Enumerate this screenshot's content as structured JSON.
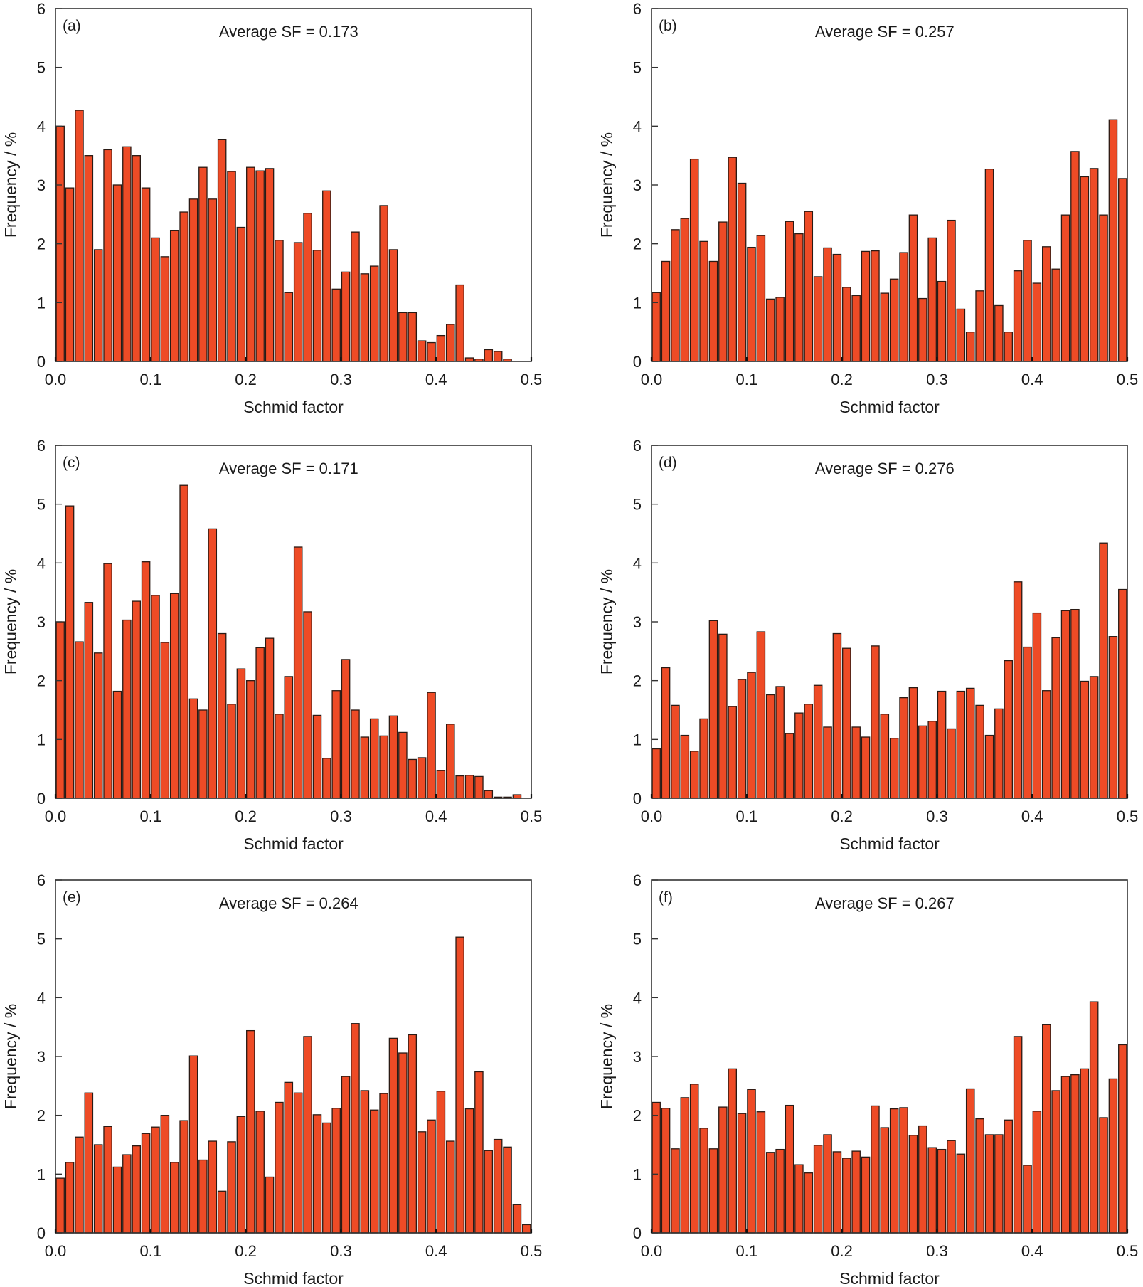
{
  "figure": {
    "bar_color": "#EE4B26",
    "bar_edge_color": "#2a1a14",
    "frame_color": "#333333"
  },
  "chart_data": [
    {
      "type": "bar",
      "panel": "(a)",
      "annotation": "Average SF = 0.173",
      "xlabel": "Schmid factor",
      "ylabel": "Frequency / %",
      "xlim": [
        0.0,
        0.5
      ],
      "ylim": [
        0,
        6
      ],
      "xticks": [
        "0.0",
        "0.1",
        "0.2",
        "0.3",
        "0.4",
        "0.5"
      ],
      "yticks": [
        "0",
        "1",
        "2",
        "3",
        "4",
        "5",
        "6"
      ],
      "bin_width": 0.01,
      "grid": false,
      "values": [
        4.0,
        2.95,
        4.27,
        3.5,
        1.9,
        3.6,
        3.0,
        3.65,
        3.5,
        2.95,
        2.1,
        1.78,
        2.23,
        2.54,
        2.76,
        3.3,
        2.76,
        3.77,
        3.23,
        2.28,
        3.3,
        3.24,
        3.28,
        2.06,
        1.17,
        2.02,
        2.52,
        1.89,
        2.9,
        1.23,
        1.52,
        2.2,
        1.49,
        1.62,
        2.65,
        1.9,
        0.83,
        0.83,
        0.35,
        0.32,
        0.44,
        0.63,
        1.3,
        0.06,
        0.04,
        0.2,
        0.17,
        0.04,
        0.0,
        0.0
      ]
    },
    {
      "type": "bar",
      "panel": "(b)",
      "annotation": "Average SF = 0.257",
      "xlabel": "Schmid factor",
      "ylabel": "Frequency / %",
      "xlim": [
        0.0,
        0.5
      ],
      "ylim": [
        0,
        6
      ],
      "xticks": [
        "0.0",
        "0.1",
        "0.2",
        "0.3",
        "0.4",
        "0.5"
      ],
      "yticks": [
        "0",
        "1",
        "2",
        "3",
        "4",
        "5",
        "6"
      ],
      "bin_width": 0.01,
      "grid": false,
      "values": [
        1.17,
        1.7,
        2.24,
        2.43,
        3.44,
        2.04,
        1.7,
        2.37,
        3.47,
        3.03,
        1.94,
        2.14,
        1.06,
        1.09,
        2.38,
        2.17,
        2.55,
        1.44,
        1.93,
        1.82,
        1.26,
        1.12,
        1.87,
        1.88,
        1.16,
        1.4,
        1.85,
        2.49,
        1.07,
        2.1,
        1.36,
        2.4,
        0.89,
        0.5,
        1.2,
        3.27,
        0.95,
        0.5,
        1.54,
        2.06,
        1.33,
        1.95,
        1.57,
        2.49,
        3.57,
        3.14,
        3.28,
        2.49,
        4.11,
        3.11
      ]
    },
    {
      "type": "bar",
      "panel": "(c)",
      "annotation": "Average SF = 0.171",
      "xlabel": "Schmid factor",
      "ylabel": "Frequency / %",
      "xlim": [
        0.0,
        0.5
      ],
      "ylim": [
        0,
        6
      ],
      "xticks": [
        "0.0",
        "0.1",
        "0.2",
        "0.3",
        "0.4",
        "0.5"
      ],
      "yticks": [
        "0",
        "1",
        "2",
        "3",
        "4",
        "5",
        "6"
      ],
      "bin_width": 0.01,
      "grid": false,
      "values": [
        3.0,
        4.97,
        2.66,
        3.33,
        2.47,
        3.99,
        1.82,
        3.03,
        3.35,
        4.02,
        3.45,
        2.65,
        3.48,
        5.32,
        1.69,
        1.5,
        4.58,
        2.8,
        1.6,
        2.2,
        2.0,
        2.56,
        2.72,
        1.43,
        2.07,
        4.27,
        3.17,
        1.41,
        0.68,
        1.83,
        2.36,
        1.5,
        1.04,
        1.35,
        1.06,
        1.4,
        1.12,
        0.66,
        0.69,
        1.8,
        0.47,
        1.26,
        0.38,
        0.39,
        0.37,
        0.13,
        0.02,
        0.02,
        0.06,
        0.0
      ]
    },
    {
      "type": "bar",
      "panel": "(d)",
      "annotation": "Average SF = 0.276",
      "xlabel": "Schmid factor",
      "ylabel": "Frequency / %",
      "xlim": [
        0.0,
        0.5
      ],
      "ylim": [
        0,
        6
      ],
      "xticks": [
        "0.0",
        "0.1",
        "0.2",
        "0.3",
        "0.4",
        "0.5"
      ],
      "yticks": [
        "0",
        "1",
        "2",
        "3",
        "4",
        "5",
        "6"
      ],
      "bin_width": 0.01,
      "grid": false,
      "values": [
        0.84,
        2.22,
        1.58,
        1.07,
        0.8,
        1.35,
        3.02,
        2.79,
        1.56,
        2.02,
        2.14,
        2.83,
        1.76,
        1.9,
        1.1,
        1.45,
        1.6,
        1.92,
        1.21,
        2.8,
        2.55,
        1.21,
        1.04,
        2.59,
        1.43,
        1.02,
        1.71,
        1.88,
        1.23,
        1.31,
        1.82,
        1.18,
        1.82,
        1.87,
        1.58,
        1.07,
        1.52,
        2.34,
        3.68,
        2.57,
        3.15,
        1.83,
        2.73,
        3.19,
        3.21,
        1.99,
        2.07,
        4.34,
        2.75,
        3.55
      ]
    },
    {
      "type": "bar",
      "panel": "(e)",
      "annotation": "Average SF = 0.264",
      "xlabel": "Schmid factor",
      "ylabel": "Frequency / %",
      "xlim": [
        0.0,
        0.5
      ],
      "ylim": [
        0,
        6
      ],
      "xticks": [
        "0.0",
        "0.1",
        "0.2",
        "0.3",
        "0.4",
        "0.5"
      ],
      "yticks": [
        "0",
        "1",
        "2",
        "3",
        "4",
        "5",
        "6"
      ],
      "bin_width": 0.01,
      "grid": false,
      "values": [
        0.93,
        1.2,
        1.63,
        2.38,
        1.5,
        1.81,
        1.12,
        1.33,
        1.48,
        1.69,
        1.8,
        2.0,
        1.2,
        1.91,
        3.01,
        1.24,
        1.56,
        0.71,
        1.55,
        1.98,
        3.44,
        2.07,
        0.95,
        2.22,
        2.56,
        2.38,
        3.34,
        2.01,
        1.87,
        2.12,
        2.66,
        3.56,
        2.42,
        2.09,
        2.37,
        3.31,
        3.06,
        3.37,
        1.72,
        1.92,
        2.41,
        1.56,
        5.03,
        2.11,
        2.74,
        1.4,
        1.59,
        1.46,
        0.48,
        0.14
      ]
    },
    {
      "type": "bar",
      "panel": "(f)",
      "annotation": "Average SF = 0.267",
      "xlabel": "Schmid factor",
      "ylabel": "Frequency / %",
      "xlim": [
        0.0,
        0.5
      ],
      "ylim": [
        0,
        6
      ],
      "xticks": [
        "0.0",
        "0.1",
        "0.2",
        "0.3",
        "0.4",
        "0.5"
      ],
      "yticks": [
        "0",
        "1",
        "2",
        "3",
        "4",
        "5",
        "6"
      ],
      "bin_width": 0.01,
      "grid": false,
      "values": [
        2.22,
        2.12,
        1.43,
        2.3,
        2.53,
        1.78,
        1.43,
        2.14,
        2.79,
        2.03,
        2.44,
        2.06,
        1.37,
        1.42,
        2.17,
        1.16,
        1.02,
        1.49,
        1.67,
        1.38,
        1.27,
        1.39,
        1.29,
        2.16,
        1.79,
        2.11,
        2.13,
        1.66,
        1.82,
        1.45,
        1.42,
        1.57,
        1.34,
        2.45,
        1.94,
        1.67,
        1.67,
        1.92,
        3.34,
        1.15,
        2.07,
        3.54,
        2.42,
        2.66,
        2.69,
        2.79,
        3.93,
        1.96,
        2.62,
        3.2
      ]
    }
  ]
}
